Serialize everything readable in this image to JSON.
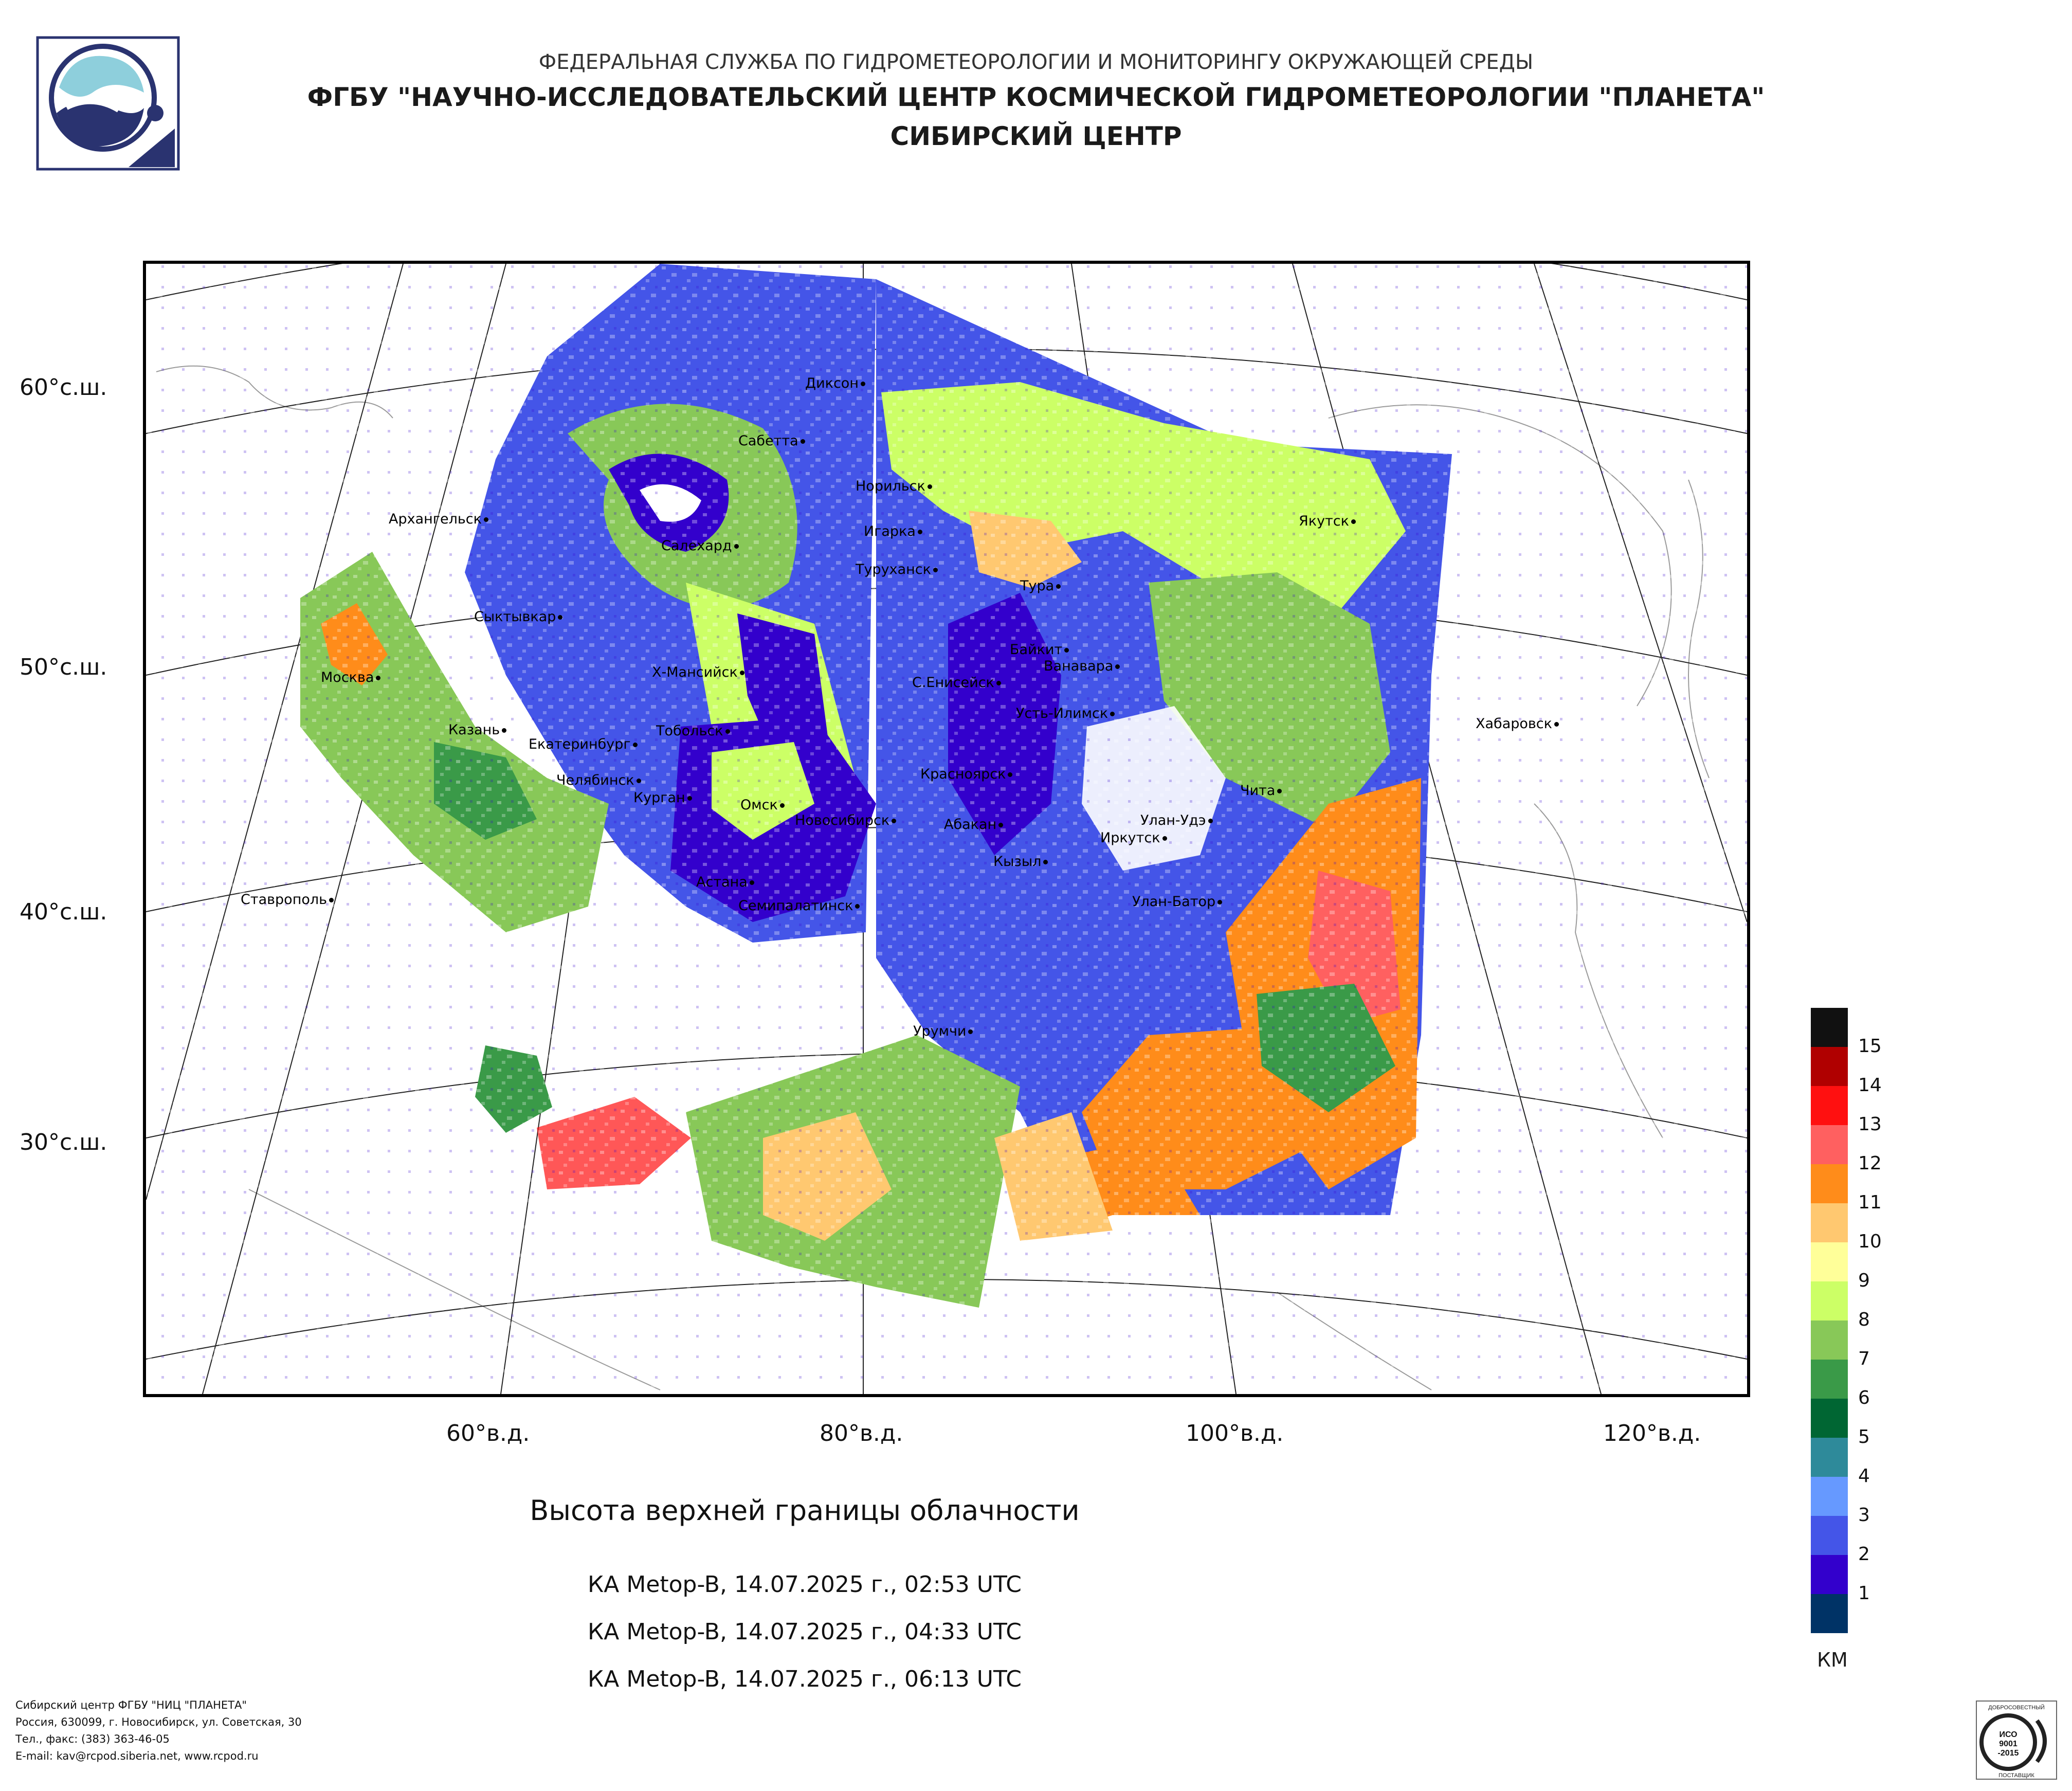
{
  "header": {
    "agency": "ФЕДЕРАЛЬНАЯ СЛУЖБА ПО ГИДРОМЕТЕОРОЛОГИИ И МОНИТОРИНГУ ОКРУЖАЮЩЕЙ СРЕДЫ",
    "institute": "ФГБУ \"НАУЧНО-ИССЛЕДОВАТЕЛЬСКИЙ ЦЕНТР КОСМИЧЕСКОЙ ГИДРОМЕТЕОРОЛОГИИ \"ПЛАНЕТА\"",
    "center": "СИБИРСКИЙ ЦЕНТР"
  },
  "map": {
    "lat_labels": [
      "60°с.ш.",
      "50°с.ш.",
      "40°с.ш.",
      "30°с.ш."
    ],
    "lon_labels": [
      "60°в.д.",
      "80°в.д.",
      "100°в.д.",
      "120°в.д."
    ],
    "cities": [
      "Диксон",
      "Сабетта",
      "Норильск",
      "Архангельск",
      "Салехард",
      "Игарка",
      "Туруханск",
      "Тура",
      "Якутск",
      "Сыктывкар",
      "Байкит",
      "Ванавара",
      "Х-Мансийск",
      "С.Енисейск",
      "Москва",
      "Усть-Илимск",
      "Хабаровск",
      "Казань",
      "Екатеринбург",
      "Тобольск",
      "Красноярск",
      "Чита",
      "Челябинск",
      "Курган",
      "Омск",
      "Новосибирск",
      "Абакан",
      "Улан-Удэ",
      "Иркутск",
      "Кызыл",
      "Астана",
      "Ставрополь",
      "Улан-Батор",
      "Семипалатинск",
      "Урумчи"
    ]
  },
  "legend": {
    "unit": "КМ",
    "levels": [
      {
        "label": "15",
        "color": "#111111"
      },
      {
        "label": "14",
        "color": "#b00000"
      },
      {
        "label": "13",
        "color": "#ff1010"
      },
      {
        "label": "12",
        "color": "#ff6060"
      },
      {
        "label": "11",
        "color": "#ff8c1a"
      },
      {
        "label": "10",
        "color": "#ffc870"
      },
      {
        "label": "9",
        "color": "#ffff99"
      },
      {
        "label": "8",
        "color": "#ccff66"
      },
      {
        "label": "7",
        "color": "#88c858"
      },
      {
        "label": "6",
        "color": "#3a9a48"
      },
      {
        "label": "5",
        "color": "#006633"
      },
      {
        "label": "4",
        "color": "#2e8a9a"
      },
      {
        "label": "3",
        "color": "#6699ff"
      },
      {
        "label": "2",
        "color": "#4455e8"
      },
      {
        "label": "1",
        "color": "#3300cc"
      },
      {
        "label": "",
        "color": "#003366"
      }
    ]
  },
  "product": {
    "title": "Высота верхней границы облачности",
    "passes": [
      "КА Metop-B, 14.07.2025 г., 02:53 UTC",
      "КА Metop-B, 14.07.2025 г., 04:33 UTC",
      "КА Metop-B, 14.07.2025 г., 06:13 UTC"
    ]
  },
  "footer": {
    "lines": [
      "Сибирский центр ФГБУ \"НИЦ \"ПЛАНЕТА\"",
      "Россия, 630099, г. Новосибирск, ул. Советская, 30",
      "Тел., факс: (383) 363-46-05",
      "E-mail: kav@rcpod.siberia.net, www.rcpod.ru"
    ],
    "certificate": [
      "ДОБРОСОВЕСТНЫЙ",
      "ИСО",
      "9001",
      "-2015",
      "ПОСТАВЩИК"
    ]
  }
}
